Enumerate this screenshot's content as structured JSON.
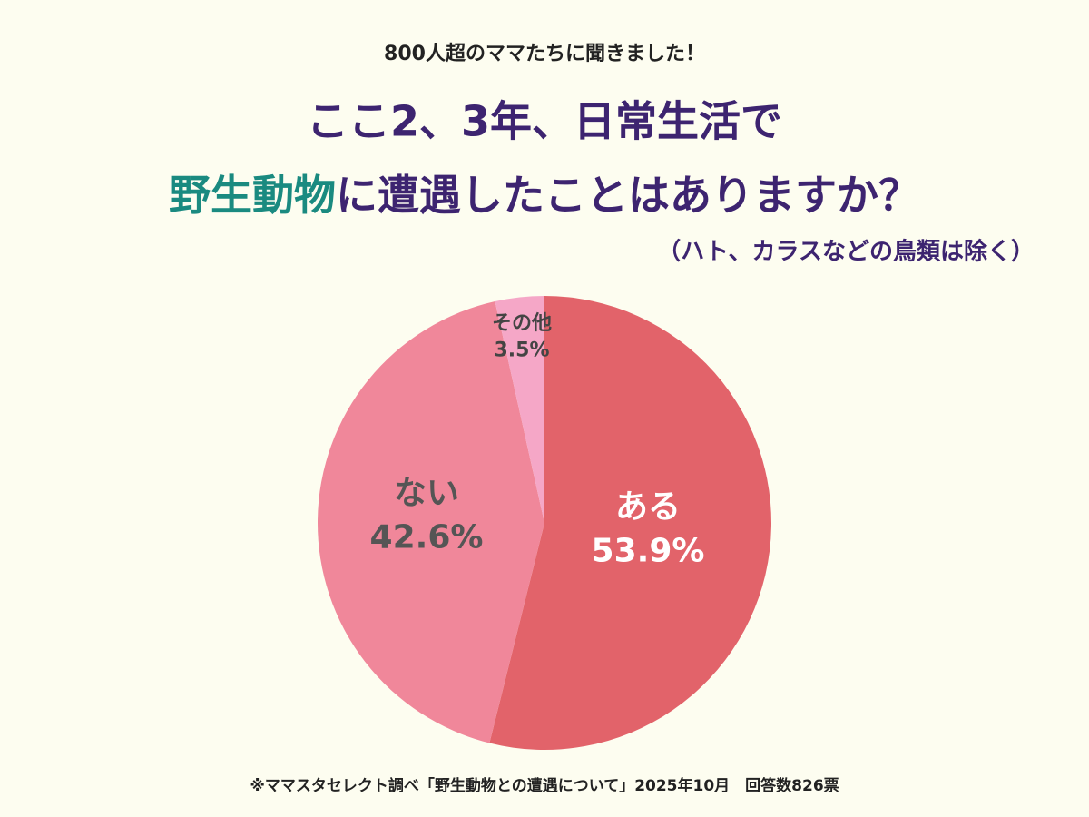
{
  "chart_data": {
    "type": "pie",
    "subtitle": "800人超のママたちに聞きました！",
    "title_line1": "ここ2、3年、日常生活で",
    "title_line2": [
      "野生動物",
      "に遭遇したことはありますか？"
    ],
    "title_colors": [
      "#3d2470",
      "#1a8a80"
    ],
    "note": "（ハト、カラスなどの鳥類は除く）",
    "categories": [
      "ある",
      "ない",
      "その他"
    ],
    "values": [
      53.9,
      42.6,
      3.5
    ],
    "value_labels": [
      "53.9%",
      "42.6%",
      "3.5%"
    ],
    "colors": [
      "#e2636a",
      "#f0879a",
      "#f5a7c7"
    ],
    "label_colors": [
      "#ffffff",
      "#555555",
      "#444444"
    ],
    "source": "※ママスタセレクト調べ「野生動物との遭遇について」2025年10月　回答数826票"
  }
}
